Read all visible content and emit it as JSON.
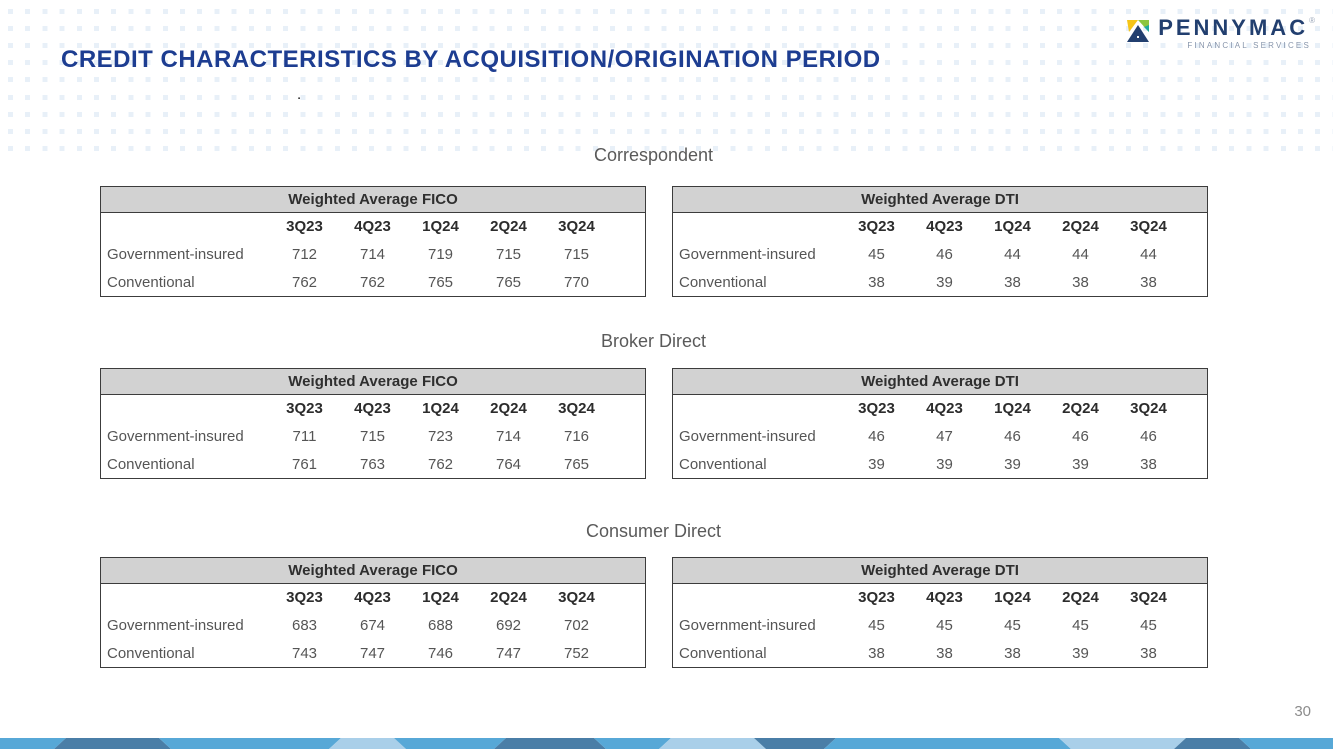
{
  "slide": {
    "title": "CREDIT CHARACTERISTICS BY ACQUISITION/ORIGINATION PERIOD",
    "page_number": "30",
    "stray_dot": "."
  },
  "logo": {
    "brand": "PENNYMAC",
    "trademark": "®",
    "tagline": "FINANCIAL SERVICES",
    "icon": "pennymac-triangles-icon",
    "icon_colors": {
      "yellow": "#f5c518",
      "green": "#8dc63f",
      "teal": "#1fa9a0",
      "navy": "#223f6f"
    }
  },
  "colors": {
    "title_blue": "#1d3d91",
    "brand_navy": "#223f6f",
    "section_gray": "#5a5a5a",
    "table_header_bg": "#d2d2d2",
    "table_border": "#3c3c3c",
    "table_text": "#555555",
    "dot_fill": "#e8f0f8",
    "page_number_gray": "#8c8c8c",
    "bar_medium_blue": "#57a8d7",
    "bar_dark_blue": "#4a7ea7",
    "bar_light_blue": "#a9cfe9"
  },
  "columns": [
    "3Q23",
    "4Q23",
    "1Q24",
    "2Q24",
    "3Q24"
  ],
  "sections": [
    {
      "title": "Correspondent",
      "fico": {
        "title": "Weighted Average FICO",
        "rows": [
          {
            "label": "Government-insured",
            "values": [
              "712",
              "714",
              "719",
              "715",
              "715"
            ]
          },
          {
            "label": "Conventional",
            "values": [
              "762",
              "762",
              "765",
              "765",
              "770"
            ]
          }
        ]
      },
      "dti": {
        "title": "Weighted Average DTI",
        "rows": [
          {
            "label": "Government-insured",
            "values": [
              "45",
              "46",
              "44",
              "44",
              "44"
            ]
          },
          {
            "label": "Conventional",
            "values": [
              "38",
              "39",
              "38",
              "38",
              "38"
            ]
          }
        ]
      }
    },
    {
      "title": "Broker Direct",
      "fico": {
        "title": "Weighted Average FICO",
        "rows": [
          {
            "label": "Government-insured",
            "values": [
              "711",
              "715",
              "723",
              "714",
              "716"
            ]
          },
          {
            "label": "Conventional",
            "values": [
              "761",
              "763",
              "762",
              "764",
              "765"
            ]
          }
        ]
      },
      "dti": {
        "title": "Weighted Average DTI",
        "rows": [
          {
            "label": "Government-insured",
            "values": [
              "46",
              "47",
              "46",
              "46",
              "46"
            ]
          },
          {
            "label": "Conventional",
            "values": [
              "39",
              "39",
              "39",
              "39",
              "38"
            ]
          }
        ]
      }
    },
    {
      "title": "Consumer Direct",
      "fico": {
        "title": "Weighted Average FICO",
        "rows": [
          {
            "label": "Government-insured",
            "values": [
              "683",
              "674",
              "688",
              "692",
              "702"
            ]
          },
          {
            "label": "Conventional",
            "values": [
              "743",
              "747",
              "746",
              "747",
              "752"
            ]
          }
        ]
      },
      "dti": {
        "title": "Weighted Average DTI",
        "rows": [
          {
            "label": "Government-insured",
            "values": [
              "45",
              "45",
              "45",
              "45",
              "45"
            ]
          },
          {
            "label": "Conventional",
            "values": [
              "38",
              "38",
              "38",
              "39",
              "38"
            ]
          }
        ]
      }
    }
  ],
  "footer_bar": {
    "boundaries": [
      0,
      60,
      165,
      335,
      400,
      500,
      600,
      665,
      760,
      830,
      1065,
      1180,
      1245,
      1333
    ],
    "segment_colors": [
      "#57a8d7",
      "#4a7ea7",
      "#57a8d7",
      "#a9cfe9",
      "#57a8d7",
      "#4a7ea7",
      "#57a8d7",
      "#a9cfe9",
      "#4a7ea7",
      "#57a8d7",
      "#a9cfe9",
      "#4a7ea7",
      "#57a8d7"
    ]
  }
}
